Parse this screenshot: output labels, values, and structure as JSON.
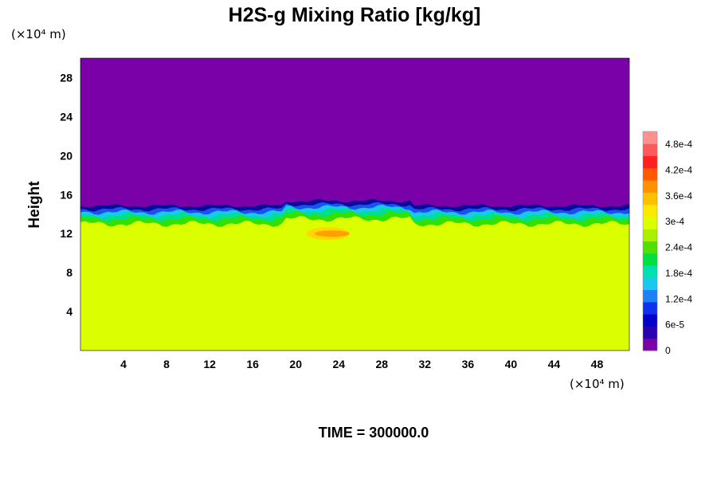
{
  "chart_data": {
    "type": "heatmap",
    "title": "H2S-g Mixing Ratio [kg/kg]",
    "ylabel": "Height",
    "xlabel": "",
    "x_unit": "(×10⁴ m)",
    "y_unit": "(×10⁴ m)",
    "xlim": [
      0,
      51
    ],
    "ylim": [
      0,
      30
    ],
    "x_ticks": [
      "4",
      "8",
      "12",
      "16",
      "20",
      "24",
      "28",
      "32",
      "36",
      "40",
      "44",
      "48"
    ],
    "y_ticks": [
      "4",
      "8",
      "12",
      "16",
      "20",
      "24",
      "28"
    ],
    "colorbar": {
      "min": 0,
      "max": 0.00051,
      "labels": [
        "4.8e-4",
        "4.2e-4",
        "3.6e-4",
        "3e-4",
        "2.4e-4",
        "1.8e-4",
        "1.2e-4",
        "6e-5",
        "0"
      ]
    },
    "field": {
      "background_value": 0.0,
      "lower_layer_value": 0.00034,
      "interface_height": 14.5,
      "transition_band": [
        12.0,
        15.0
      ],
      "maximum_patch": {
        "x_range": [
          21,
          25
        ],
        "height_range": [
          11.5,
          12.5
        ],
        "value": 0.00043
      }
    },
    "time_label": "TIME = 300000.0",
    "grid": false
  },
  "colors": {
    "upper_region": "#7a00a8",
    "lower_region": "#dcff00"
  }
}
